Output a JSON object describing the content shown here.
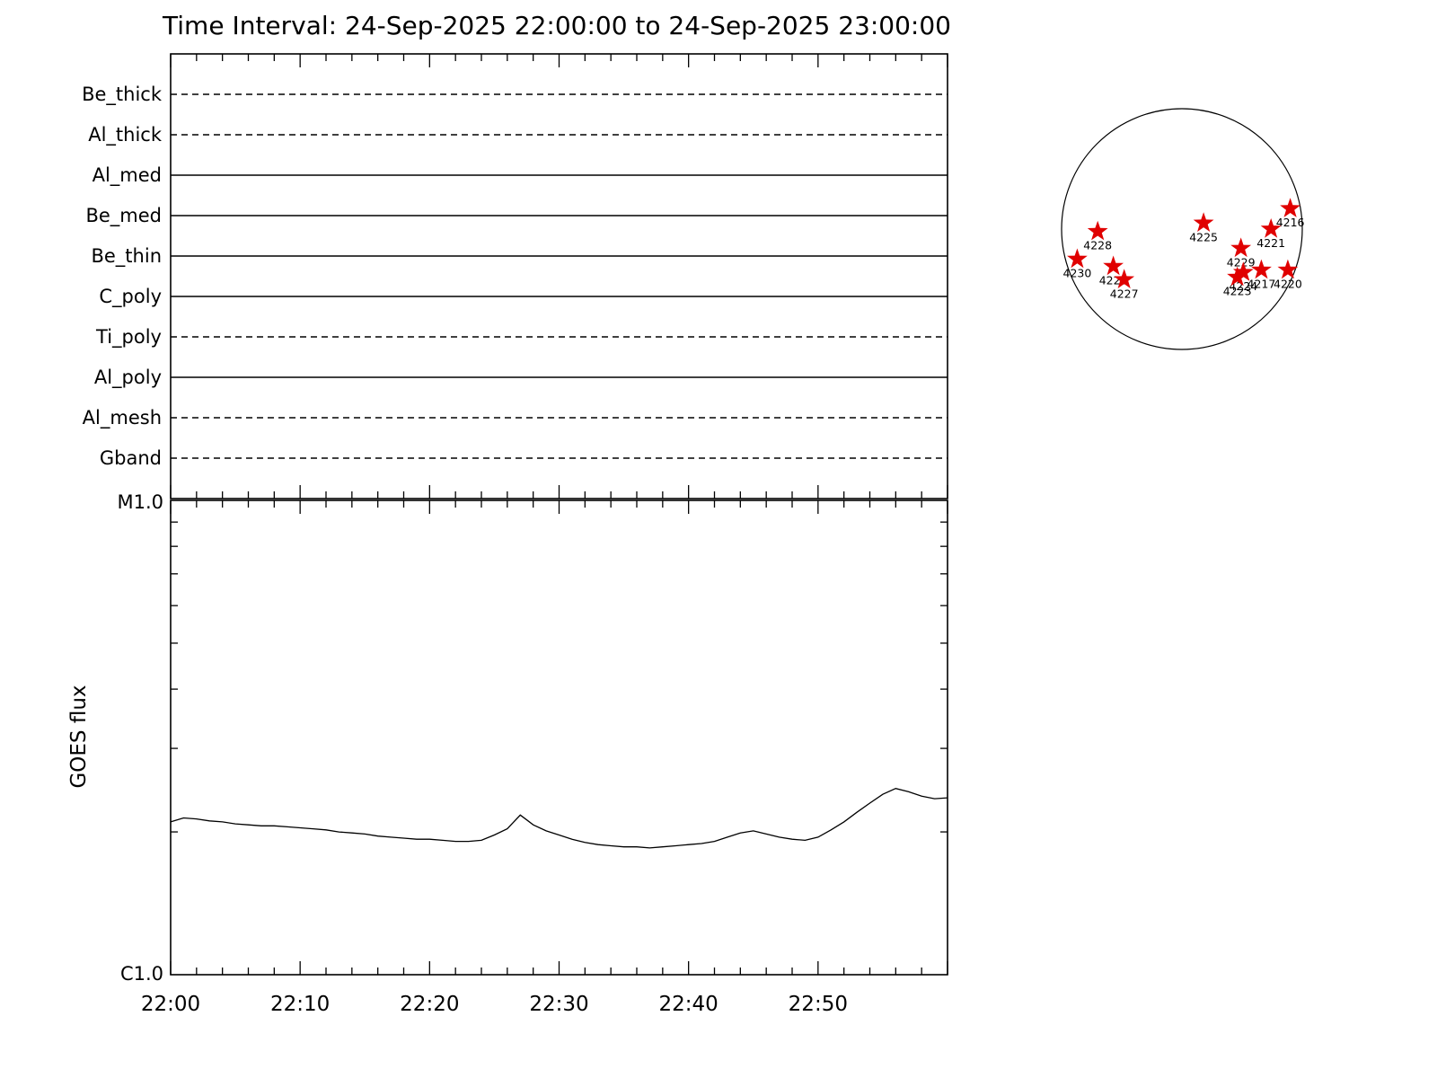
{
  "title": "Time Interval: 24-Sep-2025 22:00:00 to 24-Sep-2025 23:00:00",
  "colors": {
    "star_red": "#e00000",
    "axis": "#000000",
    "background": "#ffffff"
  },
  "chart_data": [
    {
      "type": "table",
      "name": "xrt-filter-timeline",
      "rows": [
        {
          "label": "Be_thick",
          "line": "dashed"
        },
        {
          "label": "Al_thick",
          "line": "dashed"
        },
        {
          "label": "Al_med",
          "line": "solid"
        },
        {
          "label": "Be_med",
          "line": "solid"
        },
        {
          "label": "Be_thin",
          "line": "solid"
        },
        {
          "label": "C_poly",
          "line": "solid"
        },
        {
          "label": "Ti_poly",
          "line": "dashed"
        },
        {
          "label": "Al_poly",
          "line": "solid"
        },
        {
          "label": "Al_mesh",
          "line": "dashed"
        },
        {
          "label": "Gband",
          "line": "dashed"
        }
      ],
      "x_range_minutes": [
        0,
        60
      ]
    },
    {
      "type": "line",
      "name": "goes-flux",
      "ylabel": "GOES flux",
      "y_top_label": "M1.0",
      "y_bottom_label": "C1.0",
      "y_scale": "log",
      "x_tick_labels": [
        "22:00",
        "22:10",
        "22:20",
        "22:30",
        "22:40",
        "22:50"
      ],
      "x_range_minutes": [
        0,
        60
      ],
      "x_minutes": [
        0,
        1,
        2,
        3,
        4,
        5,
        6,
        7,
        8,
        9,
        10,
        11,
        12,
        13,
        14,
        15,
        16,
        17,
        18,
        19,
        20,
        21,
        22,
        23,
        24,
        25,
        26,
        27,
        27.5,
        28,
        29,
        30,
        31,
        32,
        33,
        34,
        35,
        36,
        37,
        38,
        39,
        40,
        41,
        42,
        43,
        44,
        45,
        46,
        47,
        48,
        49,
        50,
        51,
        52,
        53,
        54,
        55,
        56,
        57,
        58,
        59,
        60
      ],
      "flux_c_units": [
        2.1,
        2.14,
        2.13,
        2.11,
        2.1,
        2.08,
        2.07,
        2.06,
        2.06,
        2.05,
        2.04,
        2.03,
        2.02,
        2.0,
        1.99,
        1.98,
        1.96,
        1.95,
        1.94,
        1.93,
        1.93,
        1.92,
        1.91,
        1.91,
        1.92,
        1.97,
        2.03,
        2.17,
        2.12,
        2.07,
        2.01,
        1.97,
        1.93,
        1.9,
        1.88,
        1.87,
        1.86,
        1.86,
        1.85,
        1.86,
        1.87,
        1.88,
        1.89,
        1.91,
        1.95,
        1.99,
        2.01,
        1.98,
        1.95,
        1.93,
        1.92,
        1.95,
        2.02,
        2.1,
        2.2,
        2.3,
        2.4,
        2.47,
        2.43,
        2.38,
        2.35,
        2.36
      ]
    },
    {
      "type": "scatter",
      "name": "solar-disk-active-regions",
      "regions": [
        {
          "id": "4216",
          "x": 0.9,
          "y": -0.17
        },
        {
          "id": "4225",
          "x": 0.18,
          "y": -0.05
        },
        {
          "id": "4221",
          "x": 0.74,
          "y": 0.0
        },
        {
          "id": "4228",
          "x": -0.7,
          "y": 0.02
        },
        {
          "id": "4229",
          "x": 0.49,
          "y": 0.16
        },
        {
          "id": "4230",
          "x": -0.87,
          "y": 0.25
        },
        {
          "id": "4226",
          "x": -0.57,
          "y": 0.31
        },
        {
          "id": "4224",
          "x": 0.51,
          "y": 0.36
        },
        {
          "id": "4217",
          "x": 0.66,
          "y": 0.34
        },
        {
          "id": "4220",
          "x": 0.88,
          "y": 0.34
        },
        {
          "id": "4227",
          "x": -0.48,
          "y": 0.42
        },
        {
          "id": "4223",
          "x": 0.46,
          "y": 0.4
        }
      ]
    }
  ]
}
